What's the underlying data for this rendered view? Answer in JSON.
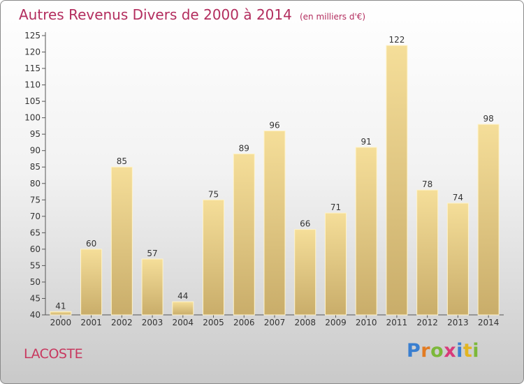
{
  "header": {
    "title": "Autres Revenus Divers de 2000 à 2014",
    "subtitle": "(en milliers d'€)"
  },
  "footer": {
    "commune": "LACOSTE"
  },
  "brand": {
    "name": "Proxiti",
    "letters": [
      {
        "char": "P",
        "color": "#3a7fd0"
      },
      {
        "char": "r",
        "color": "#e27b22"
      },
      {
        "char": "o",
        "color": "#7cb83a"
      },
      {
        "char": "x",
        "color": "#d83a7a"
      },
      {
        "char": "i",
        "color": "#3a7fd0"
      },
      {
        "char": "t",
        "color": "#e2b522"
      },
      {
        "char": "i",
        "color": "#7cb83a"
      }
    ]
  },
  "chart_data": {
    "type": "bar",
    "title": "Autres Revenus Divers de 2000 à 2014",
    "subtitle": "(en milliers d'€)",
    "categories": [
      "2000",
      "2001",
      "2002",
      "2003",
      "2004",
      "2005",
      "2006",
      "2007",
      "2008",
      "2009",
      "2010",
      "2011",
      "2012",
      "2013",
      "2014"
    ],
    "values": [
      41,
      60,
      85,
      57,
      44,
      75,
      89,
      96,
      66,
      71,
      91,
      122,
      78,
      74,
      98
    ],
    "ylim": [
      40,
      125
    ],
    "ytick_step": 5,
    "grid": false,
    "bar_color": "#e9cf86",
    "title_color": "#b32d5e"
  }
}
